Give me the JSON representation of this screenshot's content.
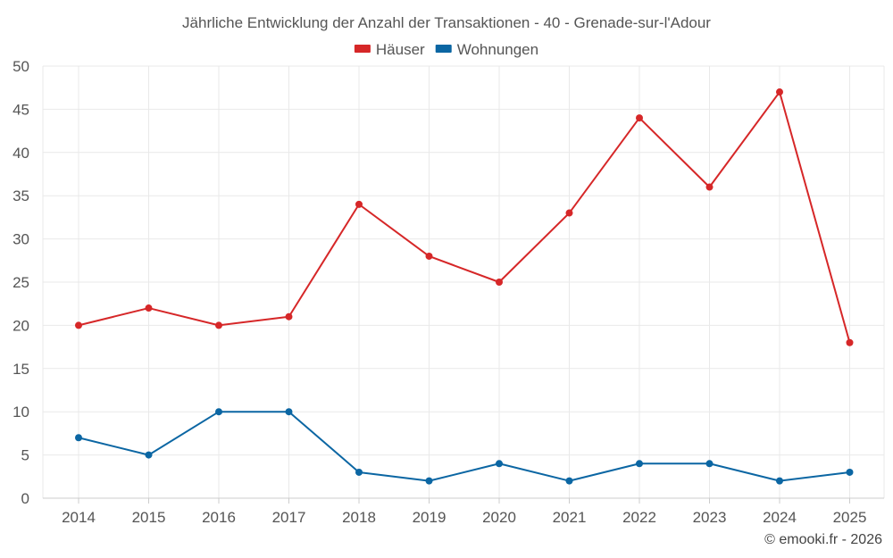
{
  "chart_data": {
    "type": "line",
    "title": "Jährliche Entwicklung der Anzahl der Transaktionen - 40 - Grenade-sur-l'Adour",
    "categories": [
      "2014",
      "2015",
      "2016",
      "2017",
      "2018",
      "2019",
      "2020",
      "2021",
      "2022",
      "2023",
      "2024",
      "2025"
    ],
    "series": [
      {
        "name": "Häuser",
        "color": "#d62728",
        "values": [
          20,
          22,
          20,
          21,
          34,
          28,
          25,
          33,
          44,
          36,
          47,
          18
        ]
      },
      {
        "name": "Wohnungen",
        "color": "#0b66a3",
        "values": [
          7,
          5,
          10,
          10,
          3,
          2,
          4,
          2,
          4,
          4,
          2,
          3
        ]
      }
    ],
    "xlabel": "",
    "ylabel": "",
    "ylim": [
      0,
      50
    ],
    "yticks": [
      0,
      5,
      10,
      15,
      20,
      25,
      30,
      35,
      40,
      45,
      50
    ],
    "grid": true,
    "legend_position": "top-center"
  },
  "credit": "© emooki.fr - 2026"
}
